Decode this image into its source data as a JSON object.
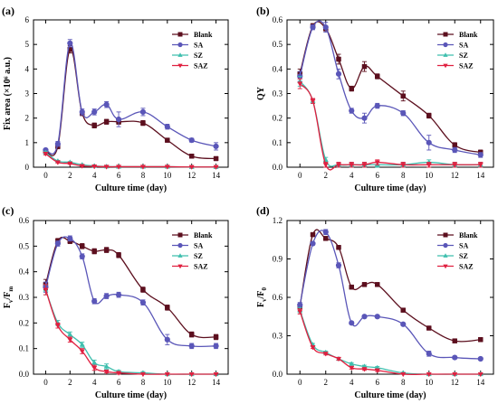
{
  "chart_data": [
    {
      "type": "line",
      "panel_label": "(a)",
      "xlabel": "Culture time (day)",
      "ylabel": "Fix area (×10⁶ a.u.)",
      "xlim": [
        -1,
        15
      ],
      "ylim": [
        0,
        6
      ],
      "xticks": [
        0,
        2,
        4,
        6,
        8,
        10,
        12,
        14
      ],
      "yticks": [
        0,
        1,
        2,
        3,
        4,
        5,
        6
      ],
      "legend": "top-right",
      "x": [
        0,
        1,
        2,
        3,
        4,
        5,
        6,
        8,
        10,
        12,
        14
      ],
      "series": [
        {
          "name": "Blank",
          "color": "#5c0f1e",
          "marker": "square",
          "values": [
            0.65,
            0.85,
            4.8,
            2.2,
            1.7,
            1.85,
            1.85,
            1.8,
            1.1,
            0.45,
            0.35
          ],
          "errors": [
            0.05,
            0.1,
            0.15,
            0.1,
            0.1,
            0.1,
            0.1,
            0.1,
            0.08,
            0.05,
            0.05
          ]
        },
        {
          "name": "SA",
          "color": "#5a56b8",
          "marker": "circle",
          "values": [
            0.7,
            0.95,
            5.05,
            2.25,
            2.25,
            2.55,
            1.95,
            2.25,
            1.65,
            1.1,
            0.85
          ],
          "errors": [
            0.05,
            0.1,
            0.15,
            0.12,
            0.12,
            0.12,
            0.3,
            0.15,
            0.1,
            0.08,
            0.15
          ]
        },
        {
          "name": "SZ",
          "color": "#3fbfae",
          "marker": "triangle-up",
          "values": [
            0.6,
            0.25,
            0.2,
            0.1,
            0.05,
            0.03,
            0.02,
            0.02,
            0.02,
            0.01,
            0.01
          ],
          "errors": [
            0.05,
            0.03,
            0.03,
            0.02,
            0.02,
            0.01,
            0.01,
            0.01,
            0.01,
            0.01,
            0.01
          ]
        },
        {
          "name": "SAZ",
          "color": "#e02040",
          "marker": "triangle-down",
          "values": [
            0.55,
            0.2,
            0.15,
            0.05,
            0.03,
            0.02,
            0.02,
            0.02,
            0.02,
            0.01,
            0.01
          ],
          "errors": [
            0.05,
            0.03,
            0.03,
            0.02,
            0.01,
            0.01,
            0.01,
            0.01,
            0.01,
            0.01,
            0.01
          ]
        }
      ]
    },
    {
      "type": "line",
      "panel_label": "(b)",
      "xlabel": "Culture time (day)",
      "ylabel": "QY",
      "xlim": [
        -1,
        15
      ],
      "ylim": [
        0,
        0.6
      ],
      "xticks": [
        0,
        2,
        4,
        6,
        8,
        10,
        12,
        14
      ],
      "yticks": [
        0.0,
        0.1,
        0.2,
        0.3,
        0.4,
        0.5,
        0.6
      ],
      "legend": "top-right",
      "x": [
        0,
        1,
        2,
        3,
        4,
        5,
        6,
        8,
        10,
        12,
        14
      ],
      "series": [
        {
          "name": "Blank",
          "color": "#5c0f1e",
          "marker": "square",
          "values": [
            0.38,
            0.575,
            0.565,
            0.44,
            0.32,
            0.41,
            0.37,
            0.29,
            0.21,
            0.09,
            0.06
          ],
          "errors": [
            0.02,
            0.01,
            0.01,
            0.02,
            0.01,
            0.02,
            0.01,
            0.02,
            0.01,
            0.01,
            0.01
          ]
        },
        {
          "name": "SA",
          "color": "#5a56b8",
          "marker": "circle",
          "values": [
            0.37,
            0.57,
            0.57,
            0.38,
            0.23,
            0.2,
            0.25,
            0.22,
            0.1,
            0.07,
            0.05
          ],
          "errors": [
            0.02,
            0.01,
            0.02,
            0.02,
            0.01,
            0.02,
            0.01,
            0.01,
            0.03,
            0.01,
            0.01
          ]
        },
        {
          "name": "SZ",
          "color": "#3fbfae",
          "marker": "triangle-up",
          "values": [
            0.35,
            0.27,
            0.03,
            0.01,
            0.01,
            0.01,
            0.01,
            0.01,
            0.02,
            0.01,
            0.01
          ],
          "errors": [
            0.02,
            0.01,
            0.01,
            0.01,
            0.01,
            0.01,
            0.01,
            0.01,
            0.01,
            0.01,
            0.01
          ]
        },
        {
          "name": "SAZ",
          "color": "#e02040",
          "marker": "triangle-down",
          "values": [
            0.34,
            0.27,
            0.01,
            0.01,
            0.01,
            0.01,
            0.02,
            0.01,
            0.01,
            0.01,
            0.01
          ],
          "errors": [
            0.02,
            0.01,
            0.01,
            0.01,
            0.01,
            0.01,
            0.01,
            0.01,
            0.01,
            0.01,
            0.01
          ]
        }
      ]
    },
    {
      "type": "line",
      "panel_label": "(c)",
      "xlabel": "Culture time (day)",
      "ylabel": "Fv/Fm",
      "ylabel_main": "F",
      "ylabel_sub1": "v",
      "ylabel_mid": "/F",
      "ylabel_sub2": "m",
      "xlim": [
        -1,
        15
      ],
      "ylim": [
        0,
        0.6
      ],
      "xticks": [
        0,
        2,
        4,
        6,
        8,
        10,
        12,
        14
      ],
      "yticks": [
        0.0,
        0.1,
        0.2,
        0.3,
        0.4,
        0.5,
        0.6
      ],
      "legend": "top-right",
      "x": [
        0,
        1,
        2,
        3,
        4,
        5,
        6,
        8,
        10,
        12,
        14
      ],
      "series": [
        {
          "name": "Blank",
          "color": "#5c0f1e",
          "marker": "square",
          "values": [
            0.35,
            0.52,
            0.52,
            0.5,
            0.48,
            0.485,
            0.465,
            0.33,
            0.26,
            0.155,
            0.145
          ],
          "errors": [
            0.02,
            0.01,
            0.01,
            0.01,
            0.01,
            0.01,
            0.01,
            0.01,
            0.01,
            0.01,
            0.01
          ]
        },
        {
          "name": "SA",
          "color": "#5a56b8",
          "marker": "circle",
          "values": [
            0.34,
            0.51,
            0.53,
            0.46,
            0.285,
            0.305,
            0.31,
            0.28,
            0.135,
            0.11,
            0.11
          ],
          "errors": [
            0.02,
            0.01,
            0.01,
            0.01,
            0.01,
            0.01,
            0.01,
            0.01,
            0.02,
            0.01,
            0.01
          ]
        },
        {
          "name": "SZ",
          "color": "#3fbfae",
          "marker": "triangle-up",
          "values": [
            0.33,
            0.2,
            0.155,
            0.115,
            0.045,
            0.03,
            0.01,
            0.005,
            0.0,
            0.0,
            0.0
          ],
          "errors": [
            0.02,
            0.01,
            0.01,
            0.01,
            0.01,
            0.01,
            0.005,
            0.005,
            0.0,
            0.0,
            0.0
          ]
        },
        {
          "name": "SAZ",
          "color": "#e02040",
          "marker": "triangle-down",
          "values": [
            0.33,
            0.19,
            0.135,
            0.09,
            0.025,
            0.01,
            0.005,
            0.0,
            0.0,
            0.0,
            0.0
          ],
          "errors": [
            0.02,
            0.01,
            0.01,
            0.01,
            0.01,
            0.005,
            0.005,
            0.0,
            0.0,
            0.0,
            0.0
          ]
        }
      ]
    },
    {
      "type": "line",
      "panel_label": "(d)",
      "xlabel": "Culture time (day)",
      "ylabel": "Fv/F0",
      "ylabel_main": "F",
      "ylabel_sub1": "v",
      "ylabel_mid": "/F",
      "ylabel_sub2": "0",
      "xlim": [
        -1,
        15
      ],
      "ylim": [
        0,
        1.2
      ],
      "xticks": [
        0,
        2,
        4,
        6,
        8,
        10,
        12,
        14
      ],
      "yticks": [
        0.0,
        0.3,
        0.6,
        0.9,
        1.2
      ],
      "legend": "top-right",
      "x": [
        0,
        1,
        2,
        3,
        4,
        5,
        6,
        8,
        10,
        12,
        14
      ],
      "series": [
        {
          "name": "Blank",
          "color": "#5c0f1e",
          "marker": "square",
          "values": [
            0.53,
            1.09,
            1.06,
            0.99,
            0.68,
            0.7,
            0.7,
            0.5,
            0.36,
            0.26,
            0.27
          ],
          "errors": [
            0.02,
            0.01,
            0.01,
            0.01,
            0.01,
            0.01,
            0.01,
            0.01,
            0.01,
            0.01,
            0.01
          ]
        },
        {
          "name": "SA",
          "color": "#5a56b8",
          "marker": "circle",
          "values": [
            0.54,
            1.02,
            1.11,
            0.85,
            0.4,
            0.45,
            0.45,
            0.39,
            0.16,
            0.13,
            0.12
          ],
          "errors": [
            0.02,
            0.01,
            0.02,
            0.02,
            0.01,
            0.01,
            0.01,
            0.01,
            0.02,
            0.01,
            0.01
          ]
        },
        {
          "name": "SZ",
          "color": "#3fbfae",
          "marker": "triangle-up",
          "values": [
            0.5,
            0.23,
            0.17,
            0.12,
            0.08,
            0.06,
            0.05,
            0.01,
            0.0,
            0.0,
            0.0
          ],
          "errors": [
            0.02,
            0.01,
            0.01,
            0.01,
            0.01,
            0.01,
            0.01,
            0.005,
            0.0,
            0.0,
            0.0
          ]
        },
        {
          "name": "SAZ",
          "color": "#e02040",
          "marker": "triangle-down",
          "values": [
            0.49,
            0.21,
            0.16,
            0.12,
            0.05,
            0.04,
            0.03,
            0.0,
            0.0,
            0.0,
            0.0
          ],
          "errors": [
            0.02,
            0.01,
            0.01,
            0.01,
            0.01,
            0.01,
            0.01,
            0.0,
            0.0,
            0.0,
            0.0
          ]
        }
      ]
    }
  ]
}
